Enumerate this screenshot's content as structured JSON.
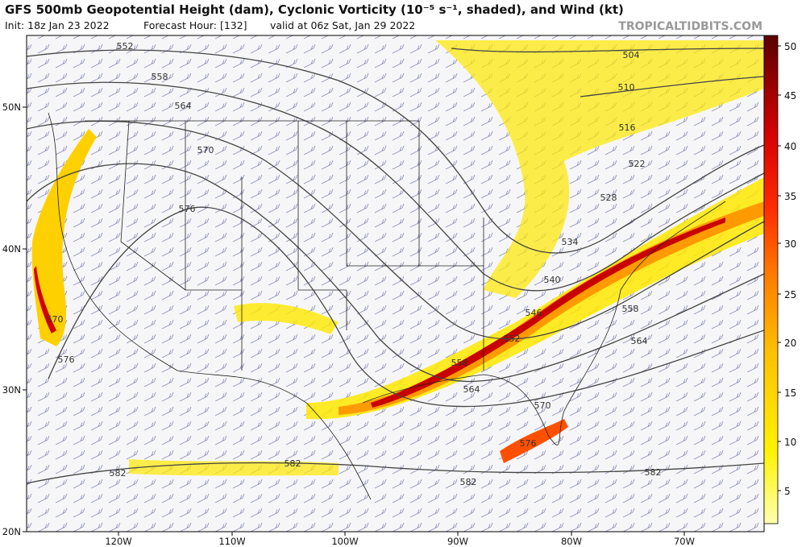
{
  "header": {
    "title": "GFS 500mb Geopotential Height (dam), Cyclonic Vorticity (10⁻⁵ s⁻¹, shaded), and Wind (kt)",
    "init": "Init: 18z Jan 23 2022",
    "forecast_hour": "Forecast Hour: [132]",
    "valid": "valid at 06z Sat, Jan 29 2022",
    "site": "TROPICALTIDBITS.COM"
  },
  "colorbar": {
    "labels": [
      "50",
      "45",
      "40",
      "35",
      "30",
      "25",
      "20",
      "15",
      "10",
      "5"
    ]
  },
  "axes": {
    "latitude": [
      "50N",
      "40N",
      "30N",
      "20N"
    ],
    "longitude": [
      "120W",
      "110W",
      "100W",
      "90W",
      "80W",
      "70W"
    ]
  },
  "contour_labels": [
    "552",
    "558",
    "564",
    "570",
    "576",
    "570",
    "576",
    "582",
    "582",
    "582",
    "582",
    "504",
    "510",
    "516",
    "522",
    "528",
    "534",
    "540",
    "546",
    "552",
    "558",
    "564",
    "570",
    "576",
    "558",
    "564"
  ]
}
